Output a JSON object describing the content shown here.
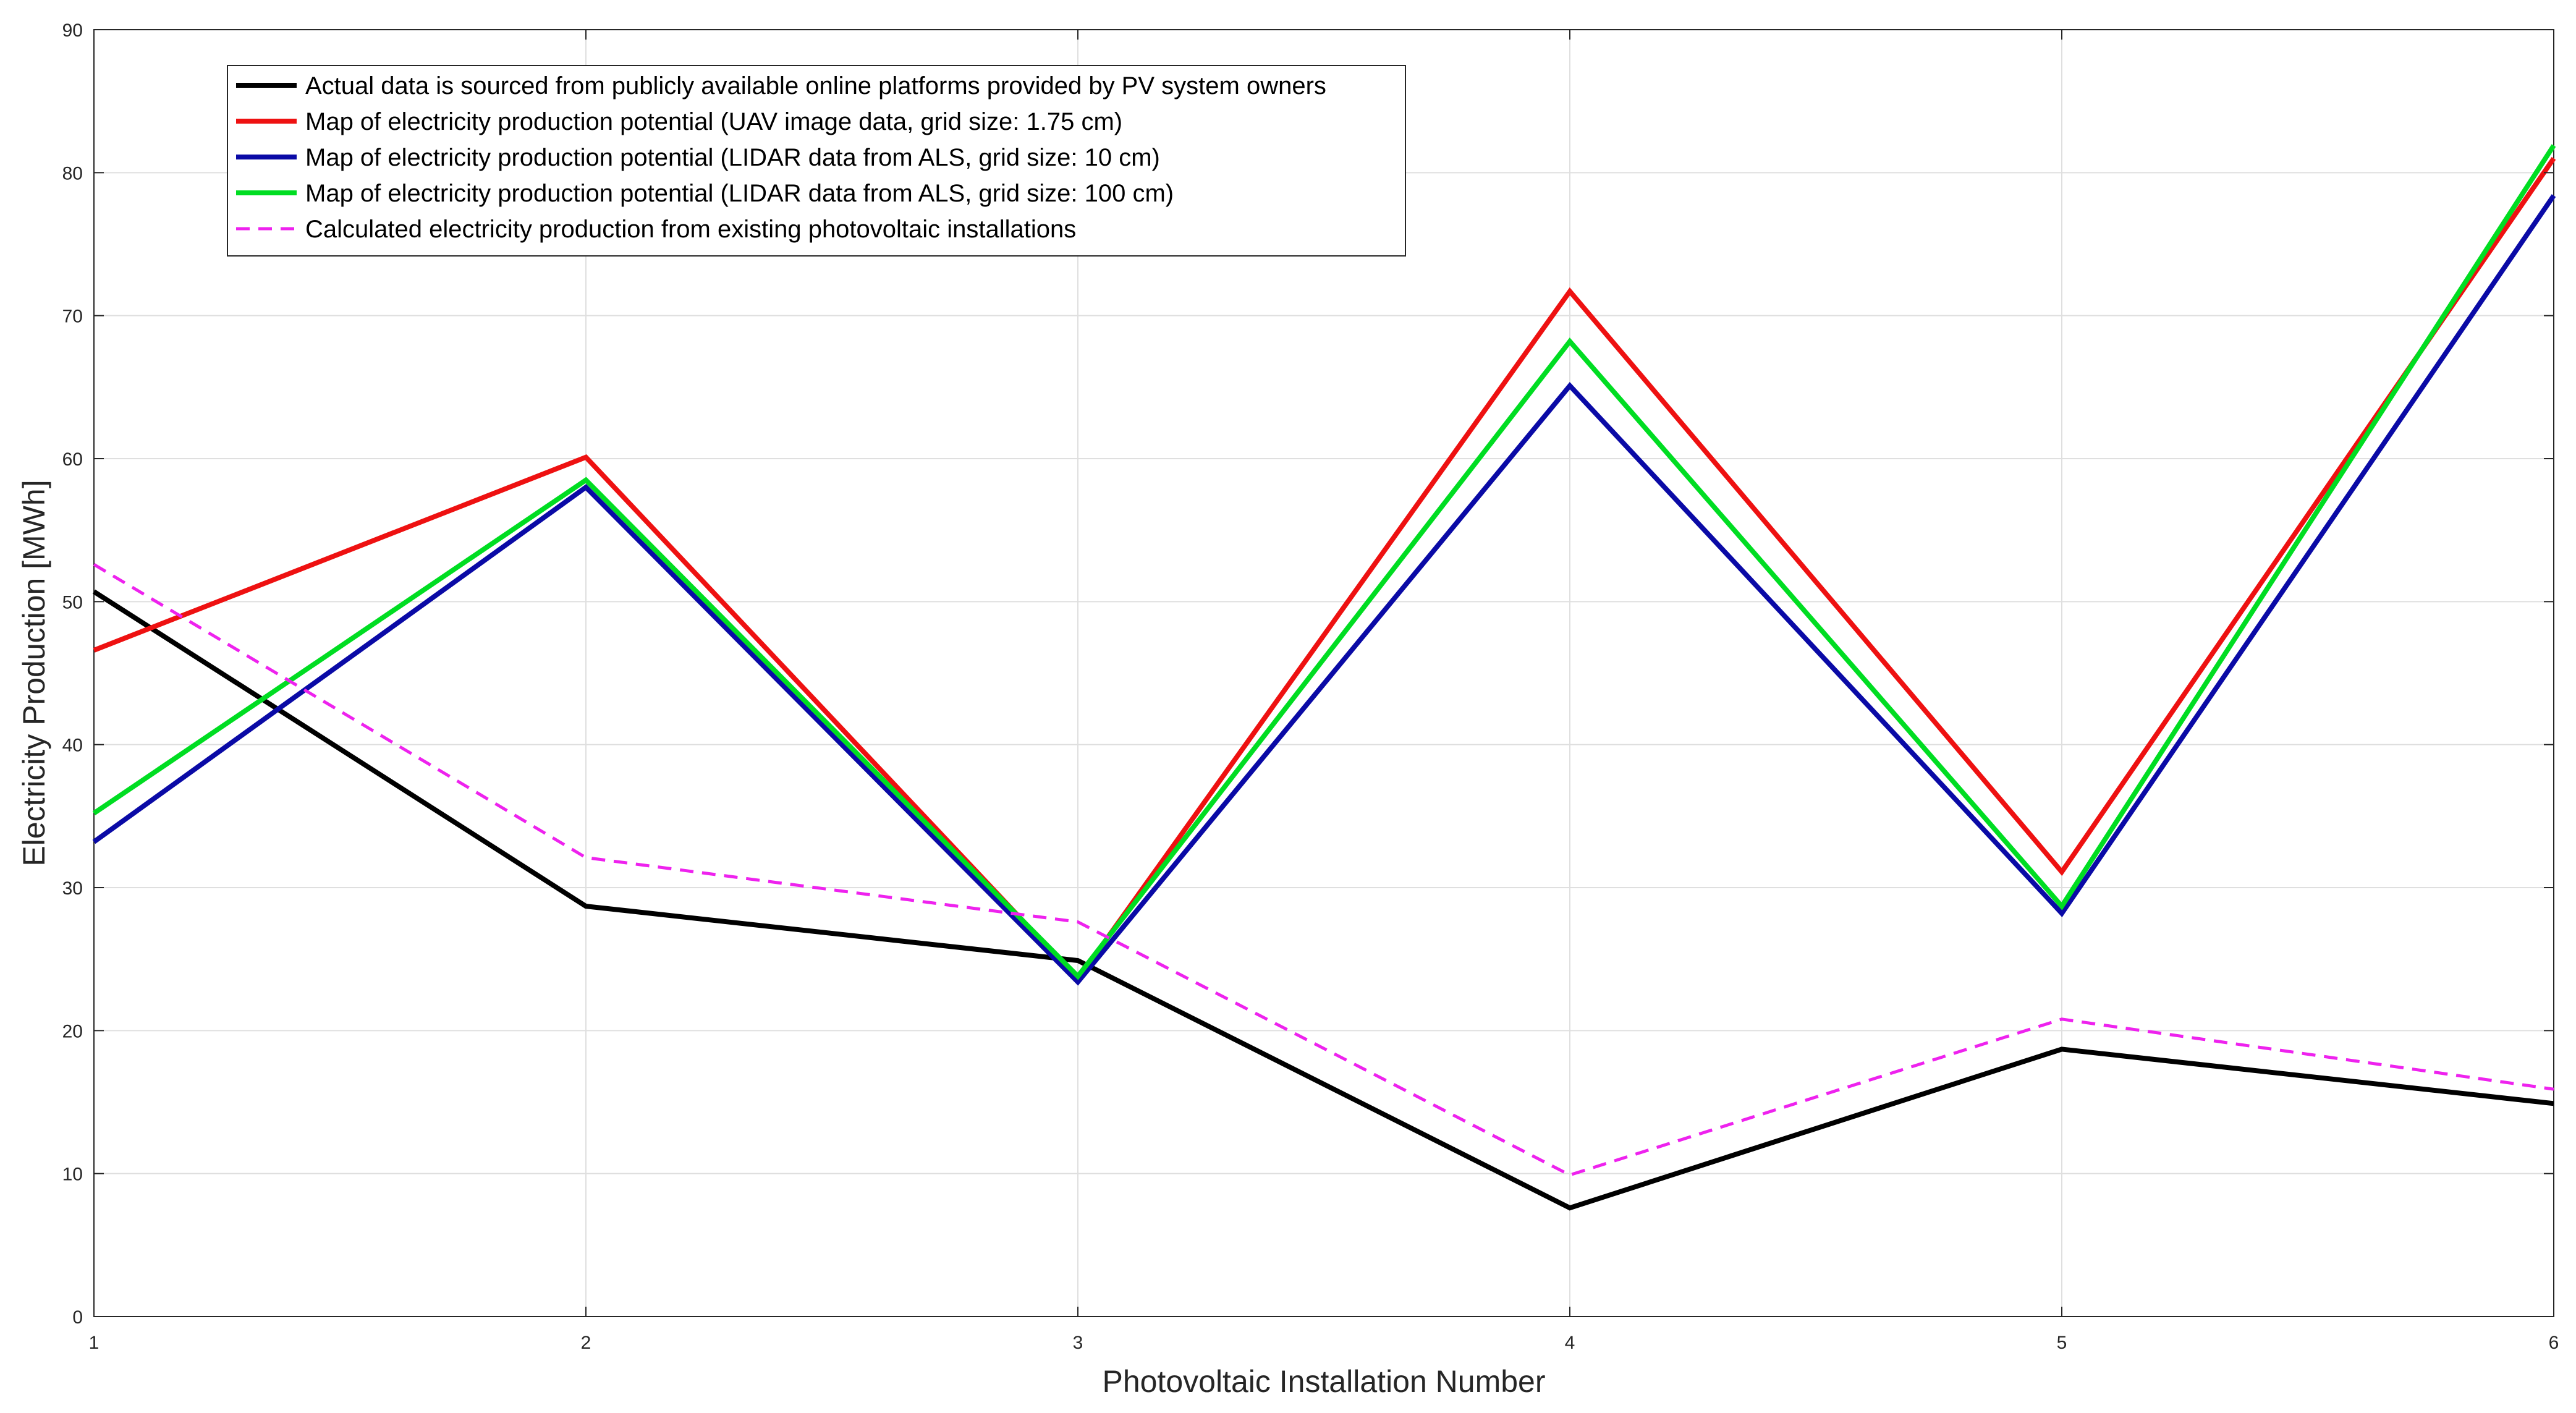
{
  "chart_data": {
    "type": "line",
    "title": "",
    "xlabel": "Photovoltaic Installation Number",
    "ylabel": "Electricity Production [MWh]",
    "x": [
      1,
      2,
      3,
      4,
      5,
      6
    ],
    "xlim": [
      1,
      6
    ],
    "ylim": [
      0,
      90
    ],
    "xticks": [
      1,
      2,
      3,
      4,
      5,
      6
    ],
    "yticks": [
      0,
      10,
      20,
      30,
      40,
      50,
      60,
      70,
      80,
      90
    ],
    "grid": true,
    "legend_position": "top-left",
    "series": [
      {
        "name": "Actual data is sourced from publicly available online platforms provided by PV system owners",
        "color": "#000000",
        "dashed": false,
        "values": [
          50.7,
          28.7,
          24.9,
          7.6,
          18.7,
          14.9
        ]
      },
      {
        "name": "Map of electricity production potential (UAV image data, grid size: 1.75 cm)",
        "color": "#ee1111",
        "dashed": false,
        "values": [
          46.6,
          60.1,
          23.6,
          71.7,
          31.1,
          81.0
        ]
      },
      {
        "name": "Map of electricity production potential (LIDAR data from ALS, grid size: 10 cm)",
        "color": "#0a0aa6",
        "dashed": false,
        "values": [
          33.2,
          58.0,
          23.4,
          65.1,
          28.2,
          78.4
        ]
      },
      {
        "name": "Map of electricity production potential (LIDAR data from ALS, grid size: 100 cm)",
        "color": "#00dd22",
        "dashed": false,
        "values": [
          35.2,
          58.5,
          23.8,
          68.2,
          28.7,
          81.9
        ]
      },
      {
        "name": "Calculated electricity production from existing photovoltaic installations",
        "color": "#ee22ee",
        "dashed": true,
        "values": [
          52.6,
          32.1,
          27.6,
          9.9,
          20.8,
          15.9
        ]
      }
    ]
  }
}
